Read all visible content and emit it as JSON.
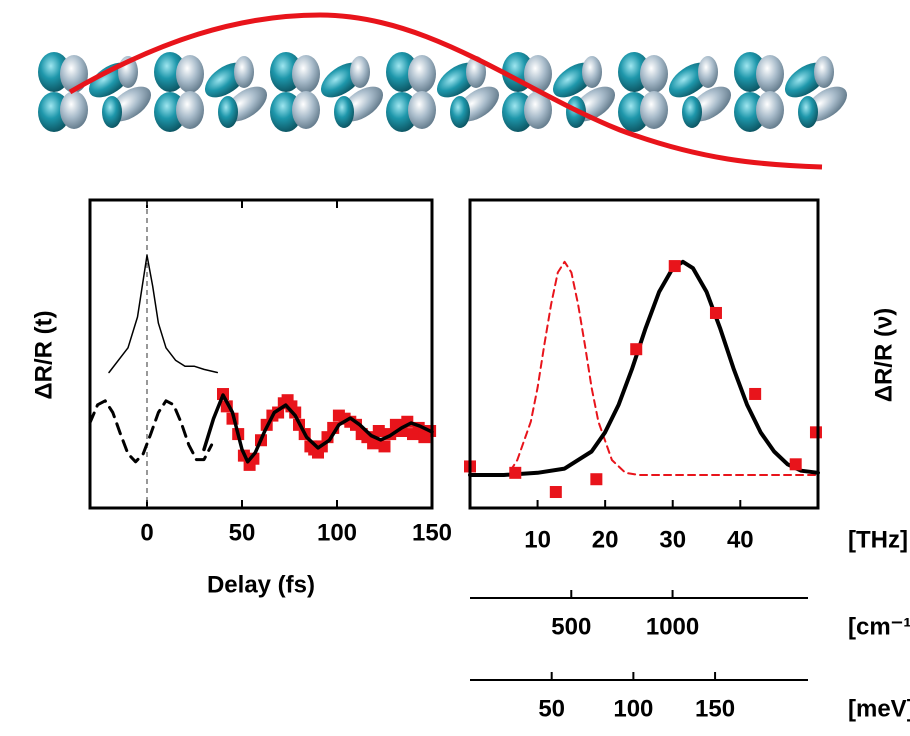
{
  "chart_data": [
    {
      "type": "line",
      "xlabel": "Delay (fs)",
      "ylabel": "ΔR/R (t)",
      "xlim": [
        -30,
        150
      ],
      "ylim": [
        0,
        1
      ],
      "xticks": [
        0,
        50,
        100,
        150
      ],
      "vline": 0,
      "series": [
        {
          "color": "#000000",
          "style": "solid",
          "linewidth": 1.5,
          "x": [
            -20,
            -10,
            -5,
            0,
            3,
            6,
            10,
            15,
            20,
            25,
            30,
            37
          ],
          "values": [
            0.44,
            0.52,
            0.62,
            0.82,
            0.72,
            0.6,
            0.52,
            0.48,
            0.46,
            0.46,
            0.45,
            0.44
          ]
        },
        {
          "color": "#000000",
          "style": "dashed",
          "linewidth": 3,
          "x": [
            -30,
            -26,
            -22,
            -18,
            -14,
            -10,
            -6,
            -2,
            2,
            6,
            10,
            14,
            18,
            22,
            26,
            30,
            34
          ],
          "values": [
            0.277,
            0.335,
            0.348,
            0.31,
            0.241,
            0.176,
            0.15,
            0.176,
            0.241,
            0.31,
            0.348,
            0.335,
            0.277,
            0.205,
            0.157,
            0.157,
            0.205
          ]
        },
        {
          "color": "#e8141b",
          "style": "markers",
          "x": [
            40,
            42,
            45,
            48,
            51,
            54,
            56,
            60,
            63,
            66,
            69,
            72,
            74,
            76,
            78,
            80,
            83,
            86,
            88,
            90,
            92,
            95,
            98,
            101,
            104,
            107,
            110,
            113,
            116,
            119,
            122,
            125,
            128,
            131,
            134,
            137,
            140,
            143,
            146,
            149
          ],
          "values": [
            0.37,
            0.33,
            0.29,
            0.24,
            0.17,
            0.14,
            0.16,
            0.22,
            0.27,
            0.3,
            0.31,
            0.34,
            0.35,
            0.33,
            0.31,
            0.27,
            0.24,
            0.2,
            0.19,
            0.18,
            0.2,
            0.23,
            0.26,
            0.3,
            0.29,
            0.28,
            0.27,
            0.24,
            0.23,
            0.21,
            0.25,
            0.2,
            0.24,
            0.27,
            0.25,
            0.28,
            0.24,
            0.26,
            0.23,
            0.25
          ]
        },
        {
          "color": "#000000",
          "style": "solid",
          "linewidth": 3.5,
          "x": [
            30,
            35,
            40,
            45,
            50,
            53,
            57,
            62,
            67,
            73,
            78,
            84,
            90,
            96,
            101,
            107,
            112,
            118,
            123,
            128,
            134,
            139,
            144,
            150
          ],
          "values": [
            0.19,
            0.29,
            0.367,
            0.31,
            0.19,
            0.15,
            0.18,
            0.25,
            0.31,
            0.334,
            0.3,
            0.23,
            0.195,
            0.22,
            0.27,
            0.292,
            0.27,
            0.235,
            0.221,
            0.235,
            0.26,
            0.276,
            0.265,
            0.247
          ]
        }
      ]
    },
    {
      "type": "line",
      "ylabel": "ΔR/R (ν)",
      "xlim": [
        0,
        51.5
      ],
      "ylim": [
        -0.155,
        1.29
      ],
      "xticks": [
        10,
        20,
        30,
        40
      ],
      "xunit": "[THz]",
      "secondary_axes": [
        {
          "label": "[cm⁻¹]",
          "xlim": [
            0,
            1718
          ],
          "xticks": [
            500,
            1000
          ]
        },
        {
          "label": "[meV]",
          "xlim": [
            0,
            213
          ],
          "xticks": [
            50,
            100,
            150
          ]
        }
      ],
      "series": [
        {
          "color": "#e8141b",
          "style": "dashed",
          "linewidth": 2,
          "x": [
            6,
            7,
            9,
            10,
            11,
            12,
            13,
            14,
            15,
            16,
            17,
            18,
            19,
            21,
            23,
            25,
            51.5
          ],
          "values": [
            0.02,
            0.07,
            0.25,
            0.41,
            0.61,
            0.8,
            0.95,
            1.0,
            0.95,
            0.8,
            0.61,
            0.41,
            0.25,
            0.07,
            0.01,
            0,
            0
          ]
        },
        {
          "color": "#000000",
          "style": "solid",
          "linewidth": 4,
          "x": [
            0,
            5,
            10,
            14,
            18,
            20,
            22,
            24,
            26,
            28,
            30,
            31.5,
            33,
            35,
            37,
            39,
            41,
            43,
            45,
            47,
            49,
            51.5
          ],
          "values": [
            0,
            0,
            0.01,
            0.03,
            0.11,
            0.2,
            0.33,
            0.5,
            0.69,
            0.86,
            0.97,
            1.0,
            0.97,
            0.86,
            0.69,
            0.5,
            0.33,
            0.2,
            0.11,
            0.05,
            0.02,
            0.01
          ]
        },
        {
          "color": "#e8141b",
          "style": "markers",
          "x": [
            0,
            6.7,
            12.7,
            18.7,
            24.6,
            30.3,
            36.4,
            42.2,
            48.2,
            51.2
          ],
          "values": [
            0.04,
            0.01,
            -0.08,
            -0.02,
            0.59,
            0.98,
            0.76,
            0.38,
            0.05,
            0.2
          ]
        }
      ]
    }
  ]
}
